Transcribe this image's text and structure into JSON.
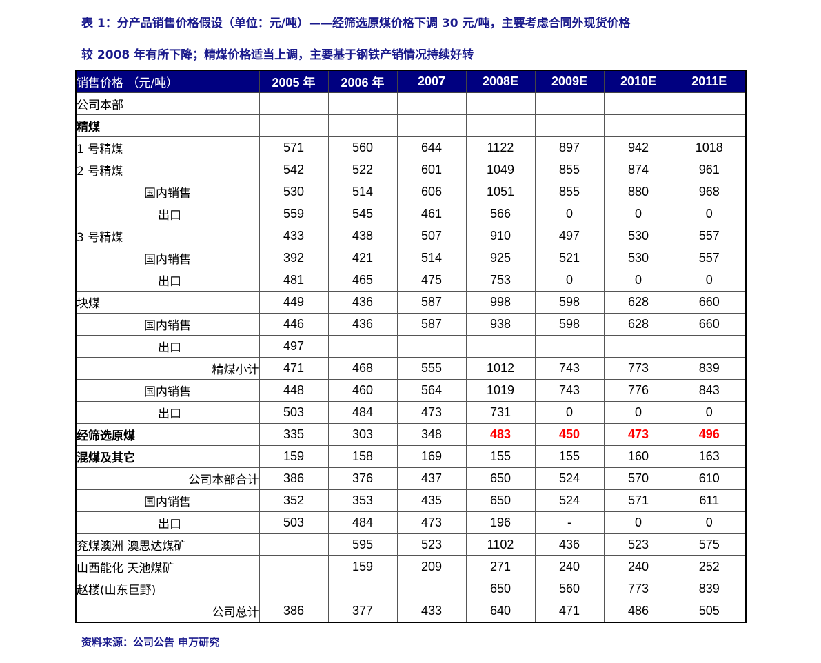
{
  "title_line1": "表 1：分产品销售价格假设（单位：元/吨）——经筛选原煤价格下调 30 元/吨，主要考虑合同外现货价格",
  "title_line2": "较 2008 年有所下降；精煤价格适当上调，主要基于钢铁产销情况持续好转",
  "colors": {
    "header_bg": "#000080",
    "title": "#1a1a8c",
    "highlight": "#ff0000"
  },
  "table": {
    "headers": [
      "销售价格 （元/吨）",
      "2005 年",
      "2006 年",
      "2007",
      "2008E",
      "2009E",
      "2010E",
      "2011E"
    ],
    "rows": [
      {
        "label": "公司本部",
        "style": "left",
        "values": [
          "",
          "",
          "",
          "",
          "",
          "",
          ""
        ]
      },
      {
        "label": "精煤",
        "style": "left",
        "bold": true,
        "values": [
          "",
          "",
          "",
          "",
          "",
          "",
          ""
        ]
      },
      {
        "label": "1 号精煤",
        "style": "left",
        "values": [
          "571",
          "560",
          "644",
          "1122",
          "897",
          "942",
          "1018"
        ]
      },
      {
        "label": "2 号精煤",
        "style": "left",
        "values": [
          "542",
          "522",
          "601",
          "1049",
          "855",
          "874",
          "961"
        ]
      },
      {
        "label": "国内销售",
        "style": "indent",
        "values": [
          "530",
          "514",
          "606",
          "1051",
          "855",
          "880",
          "968"
        ]
      },
      {
        "label": "出口",
        "style": "export",
        "values": [
          "559",
          "545",
          "461",
          "566",
          "0",
          "0",
          "0"
        ]
      },
      {
        "label": "3 号精煤",
        "style": "left",
        "values": [
          "433",
          "438",
          "507",
          "910",
          "497",
          "530",
          "557"
        ]
      },
      {
        "label": "国内销售",
        "style": "indent",
        "values": [
          "392",
          "421",
          "514",
          "925",
          "521",
          "530",
          "557"
        ]
      },
      {
        "label": "出口",
        "style": "export",
        "values": [
          "481",
          "465",
          "475",
          "753",
          "0",
          "0",
          "0"
        ]
      },
      {
        "label": "块煤",
        "style": "left",
        "values": [
          "449",
          "436",
          "587",
          "998",
          "598",
          "628",
          "660"
        ]
      },
      {
        "label": "国内销售",
        "style": "indent",
        "values": [
          "446",
          "436",
          "587",
          "938",
          "598",
          "628",
          "660"
        ]
      },
      {
        "label": "出口",
        "style": "export",
        "values": [
          "497",
          "",
          "",
          "",
          "",
          "",
          ""
        ]
      },
      {
        "label": "精煤小计",
        "style": "right",
        "values": [
          "471",
          "468",
          "555",
          "1012",
          "743",
          "773",
          "839"
        ]
      },
      {
        "label": "国内销售",
        "style": "indent",
        "values": [
          "448",
          "460",
          "564",
          "1019",
          "743",
          "776",
          "843"
        ]
      },
      {
        "label": "出口",
        "style": "export",
        "values": [
          "503",
          "484",
          "473",
          "731",
          "0",
          "0",
          "0"
        ]
      },
      {
        "label": "经筛选原煤",
        "style": "left",
        "bold": true,
        "red_from": 3,
        "values": [
          "335",
          "303",
          "348",
          "483",
          "450",
          "473",
          "496"
        ]
      },
      {
        "label": "混煤及其它",
        "style": "left",
        "bold": true,
        "values": [
          "159",
          "158",
          "169",
          "155",
          "155",
          "160",
          "163"
        ]
      },
      {
        "label": "公司本部合计",
        "style": "right",
        "values": [
          "386",
          "376",
          "437",
          "650",
          "524",
          "570",
          "610"
        ]
      },
      {
        "label": "国内销售",
        "style": "indent",
        "values": [
          "352",
          "353",
          "435",
          "650",
          "524",
          "571",
          "611"
        ]
      },
      {
        "label": "出口",
        "style": "export",
        "values": [
          "503",
          "484",
          "473",
          "196",
          "-",
          "0",
          "0"
        ]
      },
      {
        "label": "兖煤澳洲  澳思达煤矿",
        "style": "left",
        "values": [
          "",
          "595",
          "523",
          "1102",
          "436",
          "523",
          "575"
        ]
      },
      {
        "label": "山西能化  天池煤矿",
        "style": "left",
        "values": [
          "",
          "159",
          "209",
          "271",
          "240",
          "240",
          "252"
        ]
      },
      {
        "label": "赵楼(山东巨野)",
        "style": "left",
        "values": [
          "",
          "",
          "",
          "650",
          "560",
          "773",
          "839"
        ]
      },
      {
        "label": "公司总计",
        "style": "right",
        "values": [
          "386",
          "377",
          "433",
          "640",
          "471",
          "486",
          "505"
        ]
      }
    ]
  },
  "source": "资料来源：公司公告 申万研究"
}
